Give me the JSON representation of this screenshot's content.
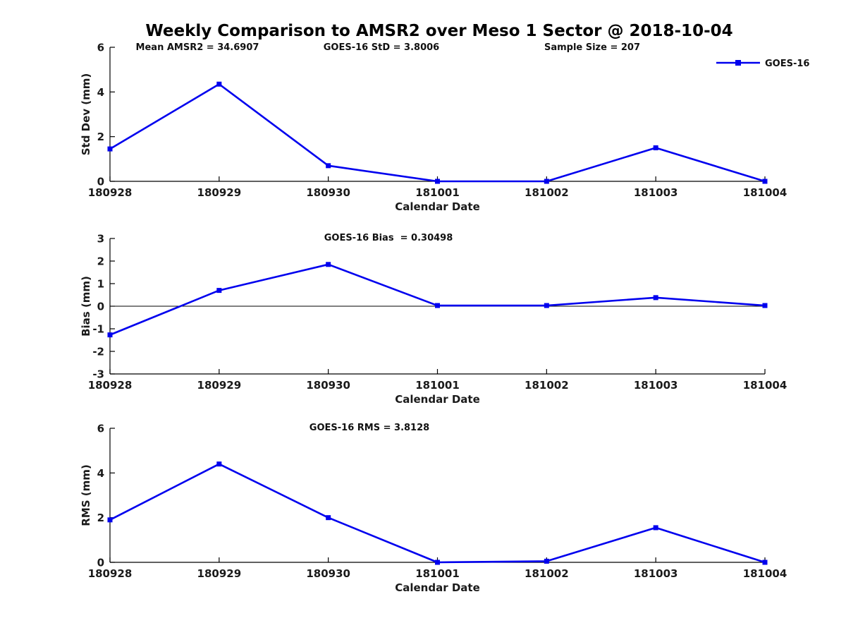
{
  "title": "Weekly Comparison to AMSR2 over Meso 1 Sector @ 2018-10-04",
  "legend": {
    "label": "GOES-16",
    "marker": "filled-square",
    "position": "top-right"
  },
  "colors": {
    "series": "#0000EE",
    "axis": "#000000",
    "text": "#1a1a1a",
    "background": "#ffffff"
  },
  "chart_data": [
    {
      "type": "line",
      "name": "std-dev-subplot",
      "categories": [
        "180928",
        "180929",
        "180930",
        "181001",
        "181002",
        "181003",
        "181004"
      ],
      "series": [
        {
          "name": "GOES-16",
          "values": [
            1.45,
            4.35,
            0.7,
            0.0,
            0.0,
            1.5,
            0.0
          ]
        }
      ],
      "annotations": [
        "Mean AMSR2 = 34.6907",
        "GOES-16 StD = 3.8006",
        "Sample Size = 207"
      ],
      "xlabel": "Calendar Date",
      "ylabel": "Std Dev (mm)",
      "ylim": [
        0,
        6
      ],
      "yticks": [
        0,
        2,
        4,
        6
      ],
      "zero_line": true,
      "grid": false,
      "legend_position": "top-right"
    },
    {
      "type": "line",
      "name": "bias-subplot",
      "categories": [
        "180928",
        "180929",
        "180930",
        "181001",
        "181002",
        "181003",
        "181004"
      ],
      "series": [
        {
          "name": "GOES-16",
          "values": [
            -1.27,
            0.7,
            1.85,
            0.03,
            0.03,
            0.38,
            0.03
          ]
        }
      ],
      "annotations": [
        "GOES-16 Bias  = 0.30498"
      ],
      "xlabel": "Calendar Date",
      "ylabel": "Bias (mm)",
      "ylim": [
        -3,
        3
      ],
      "yticks": [
        3,
        2,
        1,
        0,
        -1,
        -2,
        -3
      ],
      "zero_line": true,
      "grid": false
    },
    {
      "type": "line",
      "name": "rms-subplot",
      "categories": [
        "180928",
        "180929",
        "180930",
        "181001",
        "181002",
        "181003",
        "181004"
      ],
      "series": [
        {
          "name": "GOES-16",
          "values": [
            1.9,
            4.4,
            2.0,
            0.0,
            0.05,
            1.55,
            0.0
          ]
        }
      ],
      "annotations": [
        "GOES-16 RMS = 3.8128"
      ],
      "xlabel": "Calendar Date",
      "ylabel": "RMS (mm)",
      "ylim": [
        0,
        6
      ],
      "yticks": [
        0,
        2,
        4,
        6
      ],
      "zero_line": true,
      "grid": false
    }
  ]
}
